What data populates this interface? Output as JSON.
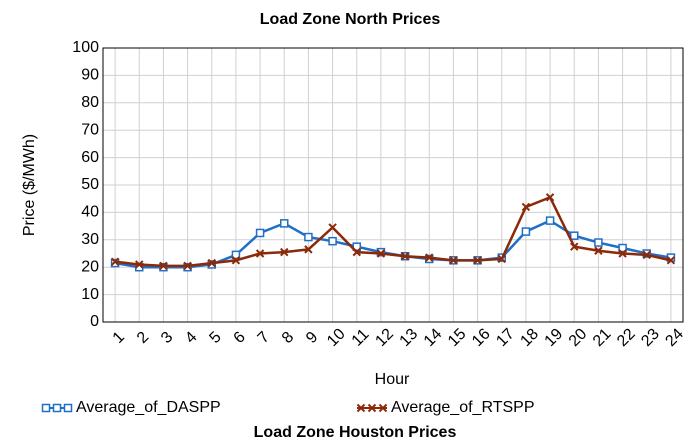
{
  "chart_data": {
    "type": "line",
    "title": "Load Zone North Prices",
    "x_label": "Hour",
    "y_label": "Price ($/MWh)",
    "categories": [
      "1",
      "2",
      "3",
      "4",
      "5",
      "6",
      "7",
      "8",
      "9",
      "10",
      "11",
      "12",
      "13",
      "14",
      "15",
      "16",
      "17",
      "18",
      "19",
      "20",
      "21",
      "22",
      "23",
      "24"
    ],
    "series": [
      {
        "name": "Average_of_DASPP",
        "color": "#1f6fc6",
        "marker": "square",
        "values": [
          21.5,
          20,
          20,
          20,
          21,
          24.5,
          32.5,
          36,
          31,
          29.5,
          27.5,
          25.5,
          24,
          23,
          22.5,
          22.5,
          23.5,
          33,
          37,
          31.5,
          29,
          27,
          25,
          23.5
        ]
      },
      {
        "name": "Average_of_RTSPP",
        "color": "#8b2a0a",
        "marker": "x",
        "values": [
          22,
          21,
          20.5,
          20.5,
          21.5,
          22.5,
          25,
          25.5,
          26.5,
          34.5,
          25.5,
          25,
          24,
          23.5,
          22.5,
          22.5,
          23,
          42,
          45.5,
          27.5,
          26,
          25,
          24.5,
          22.5
        ]
      }
    ],
    "ylim": [
      0,
      100
    ],
    "yticks": [
      0,
      10,
      20,
      30,
      40,
      50,
      60,
      70,
      80,
      90,
      100
    ],
    "grid": true
  },
  "next_chart": {
    "title": "Load Zone Houston Prices"
  }
}
